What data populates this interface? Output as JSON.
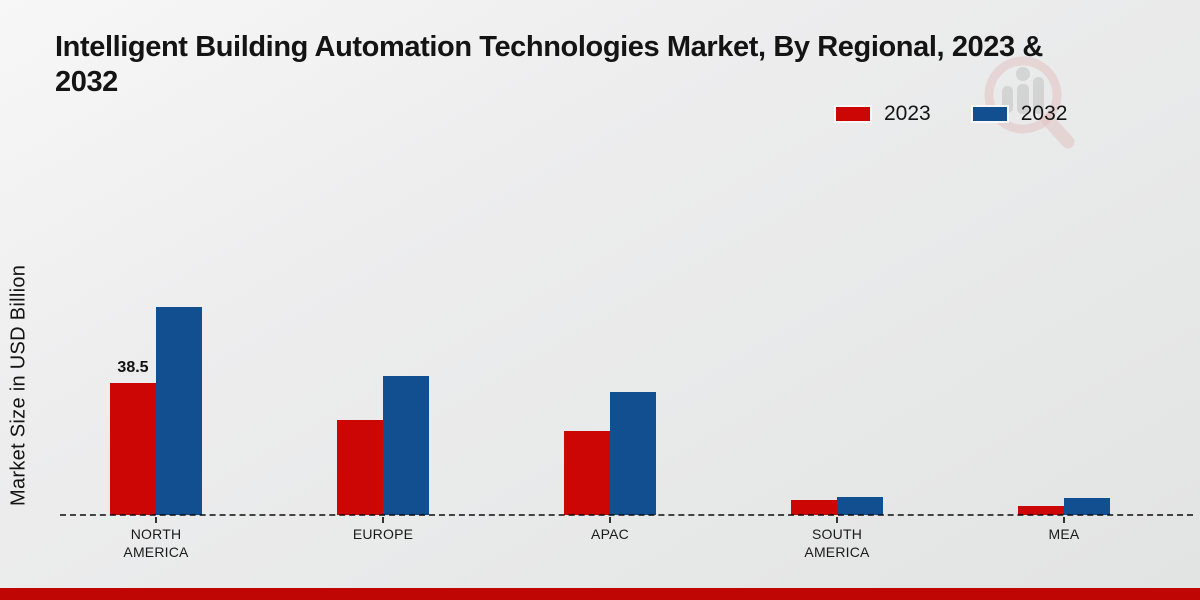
{
  "page": {
    "title_line1": "Intelligent Building Automation Technologies Market, By Regional, 2023 &",
    "title_line2": "2032",
    "footer_color": "#c00505",
    "background_color": "#eaebeb"
  },
  "watermark": {
    "name": "market-research-logo-watermark",
    "circle_color": "#dFa6a6",
    "bars_color": "#a9a9a9"
  },
  "chart_data": {
    "type": "bar",
    "title": "Intelligent Building Automation Technologies Market, By Regional, 2023 & 2032",
    "ylabel": "Market Size in USD Billion",
    "xlabel": "",
    "categories": [
      "NORTH AMERICA",
      "EUROPE",
      "APAC",
      "SOUTH AMERICA",
      "MEA"
    ],
    "series": [
      {
        "name": "2023",
        "color": "#cc0505",
        "values": [
          38.5,
          27.5,
          24.5,
          4.3,
          2.6
        ],
        "value_labels": [
          "38.5",
          null,
          null,
          null,
          null
        ]
      },
      {
        "name": "2032",
        "color": "#114f90",
        "values": [
          60.6,
          40.3,
          35.7,
          5.2,
          4.9
        ],
        "value_labels": [
          null,
          null,
          null,
          null,
          null
        ]
      }
    ],
    "ylim": [
      0,
      65
    ],
    "grid": false,
    "legend_position": "top-right",
    "baseline_style": "dashed",
    "axis_labels_uppercase": true
  }
}
